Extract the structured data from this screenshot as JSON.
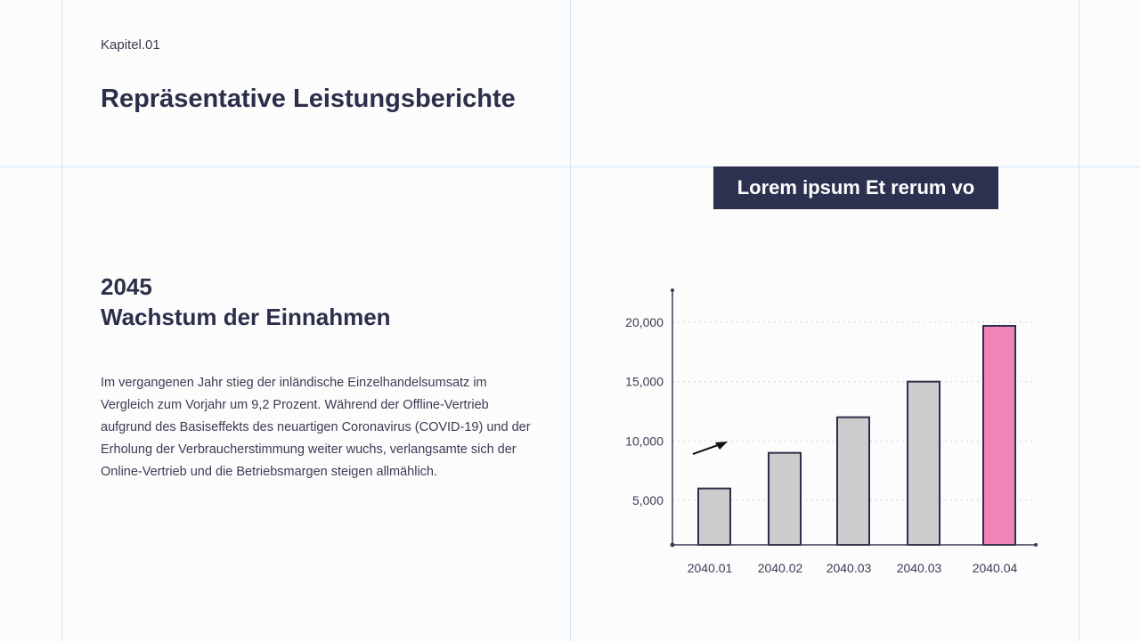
{
  "header": {
    "chapter": "Kapitel.01",
    "title": "Repräsentative Leistungsberichte"
  },
  "section": {
    "year": "2045",
    "heading": "Wachstum der Einnahmen",
    "body": "Im vergangenen Jahr stieg der inländische Einzelhandelsumsatz im Vergleich zum Vorjahr um 9,2 Prozent. Während der Offline-Vertrieb aufgrund des Basiseffekts des neuartigen Coronavirus (COVID-19) und der Erholung der Verbraucherstimmung weiter wuchs, verlangsamte sich der Online-Vertrieb und die Betriebsmargen steigen allmählich."
  },
  "banner": {
    "text": "Lorem ipsum Et rerum vo"
  },
  "colors": {
    "text": "#2b2f4a",
    "banner": "#2c3150",
    "bar": "#cccccc",
    "highlight": "#f084b6",
    "guide": "#cfe6f7"
  },
  "chart_data": {
    "type": "bar",
    "categories": [
      "2040.01",
      "2040.02",
      "2040.03",
      "2040.03",
      "2040.04"
    ],
    "values": [
      6000,
      9000,
      12000,
      15000,
      19700
    ],
    "highlight_index": 4,
    "yticks": [
      5000,
      10000,
      15000,
      20000
    ],
    "ytick_labels": [
      "5,000",
      "10,000",
      "15,000",
      "20,000"
    ],
    "ylim": [
      1250,
      22700
    ],
    "grid": "horizontal dotted",
    "annotation": "arrow-icon pointing up-right",
    "title": "",
    "xlabel": "",
    "ylabel": ""
  }
}
